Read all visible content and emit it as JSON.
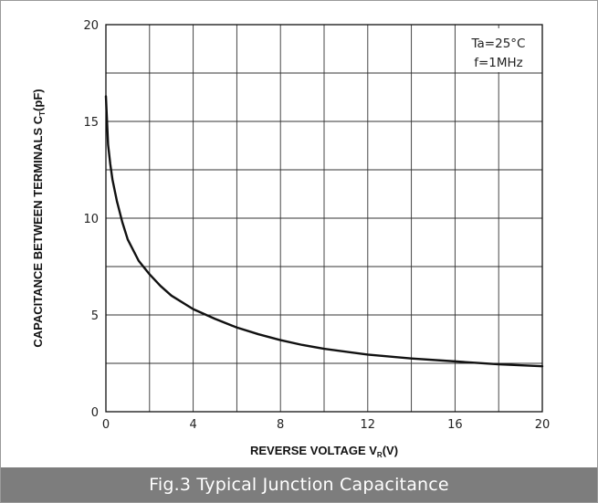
{
  "caption": "Fig.3 Typical Junction Capacitance",
  "chart_data": {
    "type": "line",
    "xlabel": "REVERSE VOLTAGE V",
    "xlabel_sub": "R",
    "xlabel_unit": "(V)",
    "ylabel": "CAPACITANCE BETWEEN TERMINALS C",
    "ylabel_sub": "T",
    "ylabel_unit": "(pF)",
    "xlim": [
      0,
      20
    ],
    "ylim": [
      0,
      20
    ],
    "xticks": [
      0,
      4,
      8,
      12,
      16,
      20
    ],
    "yticks": [
      0,
      5,
      10,
      15,
      20
    ],
    "grid": true,
    "annotations": [
      "Ta=25°C",
      "f=1MHz"
    ],
    "series": [
      {
        "x": [
          0,
          0.1,
          0.2,
          0.3,
          0.5,
          0.75,
          1,
          1.5,
          2,
          2.5,
          3,
          4,
          5,
          6,
          7,
          8,
          9,
          10,
          12,
          14,
          16,
          18,
          20
        ],
        "values": [
          16.3,
          13.8,
          12.8,
          12.0,
          10.9,
          9.8,
          8.9,
          7.8,
          7.1,
          6.5,
          6.0,
          5.3,
          4.8,
          4.35,
          4.0,
          3.7,
          3.45,
          3.25,
          2.95,
          2.75,
          2.6,
          2.45,
          2.35
        ]
      }
    ]
  }
}
